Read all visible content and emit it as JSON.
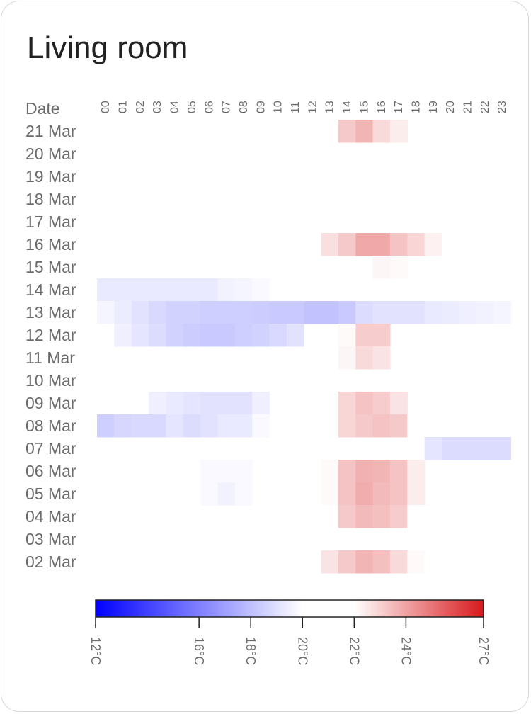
{
  "title": "Living room",
  "chart_data": {
    "type": "heatmap",
    "row_axis_label": "Date",
    "rows": [
      "21 Mar",
      "20 Mar",
      "19 Mar",
      "18 Mar",
      "17 Mar",
      "16 Mar",
      "15 Mar",
      "14 Mar",
      "13 Mar",
      "12 Mar",
      "11 Mar",
      "10 Mar",
      "09 Mar",
      "08 Mar",
      "07 Mar",
      "06 Mar",
      "05 Mar",
      "04 Mar",
      "03 Mar",
      "02 Mar"
    ],
    "columns": [
      "00",
      "01",
      "02",
      "03",
      "04",
      "05",
      "06",
      "07",
      "08",
      "09",
      "10",
      "11",
      "12",
      "13",
      "14",
      "15",
      "16",
      "17",
      "18",
      "19",
      "20",
      "21",
      "22",
      "23"
    ],
    "values": [
      [
        null,
        null,
        null,
        null,
        null,
        null,
        null,
        null,
        null,
        null,
        null,
        null,
        null,
        21.8,
        23.2,
        23.6,
        22.8,
        22.4,
        null,
        null,
        null,
        null,
        null,
        null
      ],
      [
        null,
        null,
        null,
        null,
        null,
        null,
        null,
        null,
        null,
        null,
        null,
        null,
        null,
        null,
        null,
        null,
        null,
        null,
        null,
        null,
        null,
        null,
        null,
        null
      ],
      [
        null,
        null,
        null,
        null,
        null,
        null,
        null,
        null,
        null,
        null,
        null,
        null,
        null,
        null,
        null,
        null,
        null,
        null,
        null,
        null,
        null,
        null,
        null,
        null
      ],
      [
        null,
        null,
        null,
        null,
        null,
        null,
        null,
        null,
        null,
        null,
        null,
        null,
        null,
        null,
        null,
        null,
        null,
        null,
        null,
        null,
        null,
        null,
        null,
        null
      ],
      [
        null,
        null,
        null,
        null,
        null,
        null,
        null,
        null,
        null,
        null,
        null,
        null,
        null,
        null,
        null,
        null,
        null,
        null,
        null,
        null,
        null,
        null,
        null,
        null
      ],
      [
        null,
        null,
        null,
        null,
        null,
        null,
        null,
        null,
        null,
        null,
        null,
        null,
        null,
        22.7,
        23.2,
        23.9,
        23.9,
        23.3,
        22.9,
        22.3,
        21.8,
        null,
        null,
        null
      ],
      [
        null,
        null,
        null,
        null,
        null,
        null,
        null,
        null,
        null,
        null,
        null,
        null,
        null,
        null,
        null,
        null,
        22.2,
        22.1,
        null,
        null,
        null,
        null,
        null,
        null
      ],
      [
        19.3,
        19.3,
        19.3,
        19.3,
        19.3,
        19.3,
        19.3,
        19.6,
        19.7,
        19.8,
        null,
        null,
        null,
        null,
        null,
        null,
        null,
        null,
        null,
        null,
        null,
        null,
        null,
        null
      ],
      [
        19.7,
        19.4,
        19.1,
        18.8,
        18.6,
        18.6,
        18.5,
        18.5,
        18.5,
        18.4,
        18.3,
        18.3,
        18.1,
        18.1,
        18.3,
        18.9,
        19.1,
        19.1,
        19.1,
        19.3,
        19.4,
        19.5,
        19.6,
        19.7
      ],
      [
        null,
        19.5,
        19.2,
        18.9,
        18.6,
        18.4,
        18.3,
        18.3,
        18.5,
        18.6,
        18.8,
        19.1,
        null,
        null,
        22.1,
        23.1,
        23.1,
        null,
        null,
        null,
        null,
        null,
        null,
        null
      ],
      [
        null,
        null,
        null,
        null,
        null,
        null,
        null,
        null,
        null,
        null,
        null,
        null,
        null,
        null,
        22.2,
        22.8,
        22.6,
        null,
        null,
        null,
        null,
        null,
        null,
        null
      ],
      [
        null,
        null,
        null,
        null,
        null,
        null,
        null,
        null,
        null,
        null,
        null,
        null,
        null,
        null,
        null,
        null,
        null,
        null,
        null,
        null,
        null,
        null,
        null,
        null
      ],
      [
        null,
        null,
        null,
        19.5,
        19.3,
        19.2,
        19.1,
        19.1,
        19.1,
        19.5,
        null,
        null,
        null,
        22.0,
        22.9,
        23.3,
        23.1,
        22.6,
        null,
        null,
        null,
        null,
        null,
        null
      ],
      [
        18.5,
        18.7,
        18.8,
        18.8,
        19.2,
        18.9,
        19.1,
        19.3,
        19.3,
        19.8,
        null,
        null,
        null,
        21.8,
        22.9,
        23.2,
        23.3,
        23.2,
        21.9,
        null,
        null,
        null,
        null,
        null
      ],
      [
        null,
        null,
        null,
        null,
        null,
        null,
        null,
        null,
        null,
        null,
        null,
        null,
        null,
        null,
        null,
        null,
        null,
        null,
        null,
        19.2,
        18.9,
        18.9,
        18.9,
        18.9
      ],
      [
        null,
        null,
        null,
        null,
        null,
        null,
        19.8,
        19.8,
        19.8,
        null,
        null,
        null,
        null,
        22.1,
        23.3,
        23.7,
        23.6,
        23.3,
        22.4,
        null,
        null,
        null,
        null,
        null
      ],
      [
        null,
        null,
        null,
        null,
        null,
        null,
        19.8,
        19.6,
        19.8,
        null,
        null,
        null,
        null,
        22.1,
        23.3,
        23.8,
        23.5,
        23.3,
        22.4,
        null,
        null,
        null,
        null,
        null
      ],
      [
        null,
        null,
        null,
        null,
        null,
        null,
        null,
        null,
        null,
        null,
        null,
        null,
        null,
        21.9,
        23.2,
        23.5,
        23.4,
        23.1,
        22.0,
        null,
        null,
        null,
        null,
        null
      ],
      [
        null,
        null,
        null,
        null,
        null,
        null,
        null,
        null,
        null,
        null,
        null,
        null,
        null,
        21.6,
        null,
        null,
        null,
        null,
        null,
        null,
        null,
        null,
        null,
        null
      ],
      [
        null,
        null,
        null,
        null,
        null,
        null,
        null,
        null,
        null,
        null,
        null,
        null,
        null,
        22.6,
        23.2,
        23.6,
        23.4,
        22.8,
        22.1,
        21.9,
        21.7,
        null,
        null,
        null
      ]
    ],
    "colorbar": {
      "min": 12,
      "max": 27,
      "ticks": [
        12,
        16,
        18,
        20,
        22,
        24,
        27
      ],
      "tick_labels": [
        "12°C",
        "16°C",
        "18°C",
        "20°C",
        "22°C",
        "24°C",
        "27°C"
      ],
      "colors": {
        "low": "#0000ff",
        "mid": "#ffffff",
        "high": "#d7191c"
      },
      "mid_range": [
        20,
        22
      ]
    }
  }
}
